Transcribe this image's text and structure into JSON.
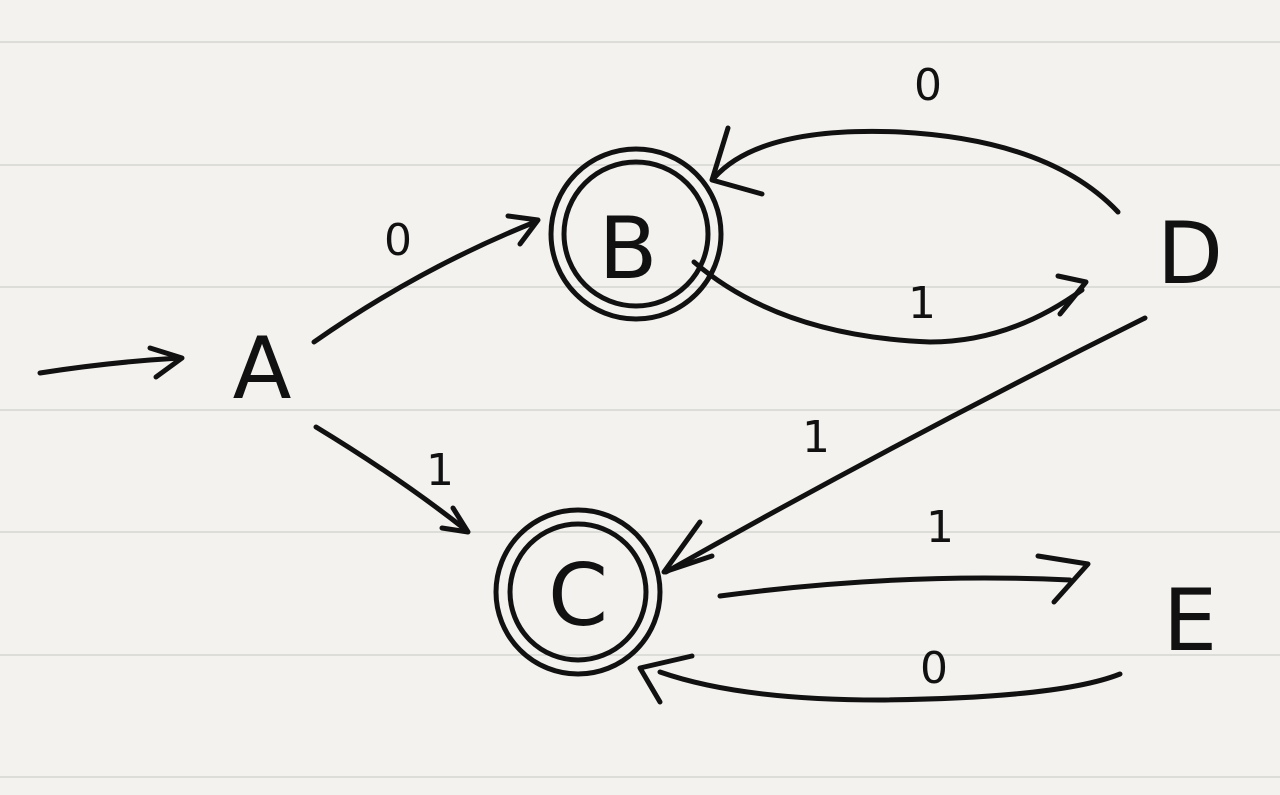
{
  "diagram": {
    "type": "finite-automaton",
    "start_state": "A",
    "states": [
      {
        "id": "A",
        "label": "A",
        "accepting": false
      },
      {
        "id": "B",
        "label": "B",
        "accepting": true
      },
      {
        "id": "C",
        "label": "C",
        "accepting": true
      },
      {
        "id": "D",
        "label": "D",
        "accepting": false
      },
      {
        "id": "E",
        "label": "E",
        "accepting": false
      }
    ],
    "transitions": [
      {
        "from": "A",
        "to": "B",
        "label": "0"
      },
      {
        "from": "A",
        "to": "C",
        "label": "1"
      },
      {
        "from": "B",
        "to": "D",
        "label": "1"
      },
      {
        "from": "D",
        "to": "B",
        "label": "0"
      },
      {
        "from": "D",
        "to": "C",
        "label": "1"
      },
      {
        "from": "C",
        "to": "E",
        "label": "1"
      },
      {
        "from": "E",
        "to": "C",
        "label": "0"
      }
    ]
  },
  "colors": {
    "paper": "#f3f2ee",
    "rule": "#d4d4d0",
    "ink": "#111111"
  }
}
